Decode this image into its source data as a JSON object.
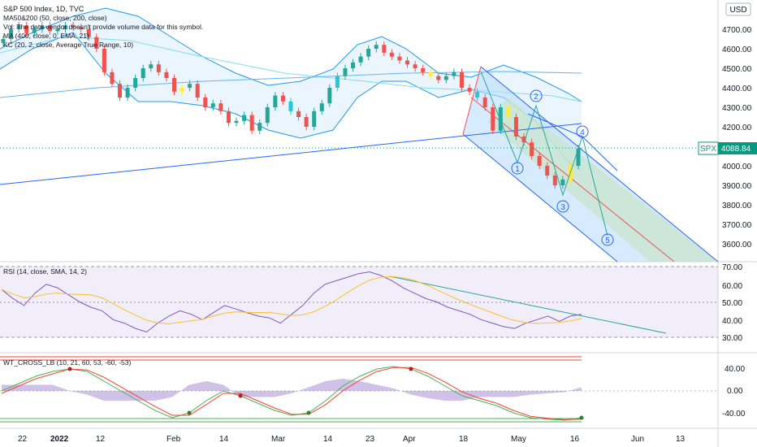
{
  "legend": {
    "title": "S&P 500 Index, 1D, TVC",
    "lines": [
      "MA50&200 (50, close, 200, close)",
      "Vol: The data vendor doesn't provide volume data for this symbol.",
      "MA (400, close, 0, EMA, 21)",
      "KC (20, 2, close, Average True Range, 10)"
    ]
  },
  "price_axis": {
    "currency": "USD",
    "symbol": "SPX",
    "last_value": "4088.84",
    "ticks": [
      "4700.00",
      "4600.00",
      "4500.00",
      "4400.00",
      "4300.00",
      "4200.00",
      "4000.00",
      "3900.00",
      "3800.00",
      "3700.00",
      "3600.00"
    ]
  },
  "rsi_panel": {
    "label": "RSI (14, close, SMA, 14, 2)",
    "ticks": [
      "70.00",
      "60.00",
      "50.00",
      "40.00",
      "30.00"
    ]
  },
  "wt_panel": {
    "label": "WT_CROSS_LB (10, 21, 60, 53, -60, -53)",
    "ticks": [
      "40.00",
      "0.00",
      "-40.00"
    ]
  },
  "time_axis": {
    "labels": [
      "22",
      "2022",
      "12",
      "Feb",
      "14",
      "Mar",
      "14",
      "23",
      "Apr",
      "18",
      "May",
      "16",
      "Jun",
      "13"
    ]
  },
  "wave_labels": [
    "1",
    "2",
    "3",
    "4",
    "5"
  ],
  "colors": {
    "up": "#26a69a",
    "down": "#ef5350",
    "highlight_yellow": "#ffeb3b",
    "highlight_cyan": "#26c6da",
    "channel_blue": "#2962ff",
    "keltner": "#2196f3",
    "rsi_line": "#7e57c2",
    "rsi_ma": "#fbc02d",
    "wt_green": "#4caf50",
    "wt_red": "#f44336",
    "last_price": "#089981"
  },
  "chart_data": [
    {
      "type": "candlestick",
      "title": "S&P 500 Index, 1D, TVC",
      "x_labels": [
        "22",
        "2022",
        "12",
        "Feb",
        "14",
        "Mar",
        "14",
        "23",
        "Apr",
        "18",
        "May",
        "16",
        "Jun",
        "13"
      ],
      "y_range": [
        3500,
        4800
      ],
      "close_path": [
        4650,
        4700,
        4720,
        4680,
        4700,
        4720,
        4690,
        4700,
        4720,
        4710,
        4700,
        4660,
        4600,
        4480,
        4420,
        4350,
        4400,
        4450,
        4500,
        4520,
        4480,
        4450,
        4380,
        4400,
        4420,
        4350,
        4300,
        4320,
        4280,
        4220,
        4230,
        4260,
        4180,
        4220,
        4300,
        4360,
        4330,
        4280,
        4250,
        4200,
        4280,
        4320,
        4400,
        4460,
        4500,
        4530,
        4560,
        4600,
        4620,
        4580,
        4560,
        4540,
        4520,
        4500,
        4480,
        4460,
        4440,
        4460,
        4480,
        4400,
        4380,
        4350,
        4300,
        4180,
        4300,
        4250,
        4150,
        4120,
        4050,
        4000,
        3950,
        3900,
        3930,
        4000,
        4088.84
      ],
      "last_value": 4088.84,
      "wave_labels": [
        "1",
        "2",
        "3",
        "4",
        "5"
      ]
    },
    {
      "type": "line",
      "title": "RSI (14, close, SMA, 14, 2)",
      "y_range": [
        25,
        75
      ],
      "levels": [
        70,
        50,
        30
      ],
      "series": [
        {
          "name": "",
          "values": [
            57,
            52,
            48,
            55,
            60,
            58,
            54,
            50,
            47,
            45,
            40,
            38,
            35,
            33,
            38,
            42,
            45,
            43,
            40,
            44,
            48,
            46,
            44,
            42,
            41,
            38,
            43,
            48,
            55,
            60,
            62,
            64,
            66,
            67,
            65,
            62,
            58,
            55,
            52,
            50,
            47,
            45,
            43,
            40,
            38,
            36,
            35,
            38,
            40,
            42,
            39,
            42,
            43
          ]
        }
      ]
    },
    {
      "type": "line",
      "title": "WT_CROSS_LB (10, 21, 60, 53, -60, -53)",
      "y_range": [
        -60,
        60
      ],
      "levels": [
        60,
        53,
        -53,
        -60
      ],
      "series": [
        {
          "name": "",
          "values": [
            0,
            15,
            30,
            40,
            45,
            40,
            20,
            0,
            -20,
            -40,
            -55,
            -45,
            -20,
            0,
            -10,
            -25,
            -40,
            -50,
            -45,
            -20,
            10,
            30,
            45,
            50,
            45,
            30,
            10,
            -10,
            -20,
            -30,
            -45,
            -55,
            -58,
            -60,
            -55
          ]
        },
        {
          "name": "",
          "values": [
            -5,
            10,
            25,
            35,
            45,
            43,
            28,
            8,
            -12,
            -32,
            -50,
            -50,
            -28,
            -5,
            -5,
            -20,
            -35,
            -48,
            -48,
            -28,
            0,
            22,
            40,
            48,
            48,
            36,
            18,
            -2,
            -15,
            -25,
            -40,
            -52,
            -56,
            -59,
            -58
          ]
        }
      ]
    }
  ]
}
